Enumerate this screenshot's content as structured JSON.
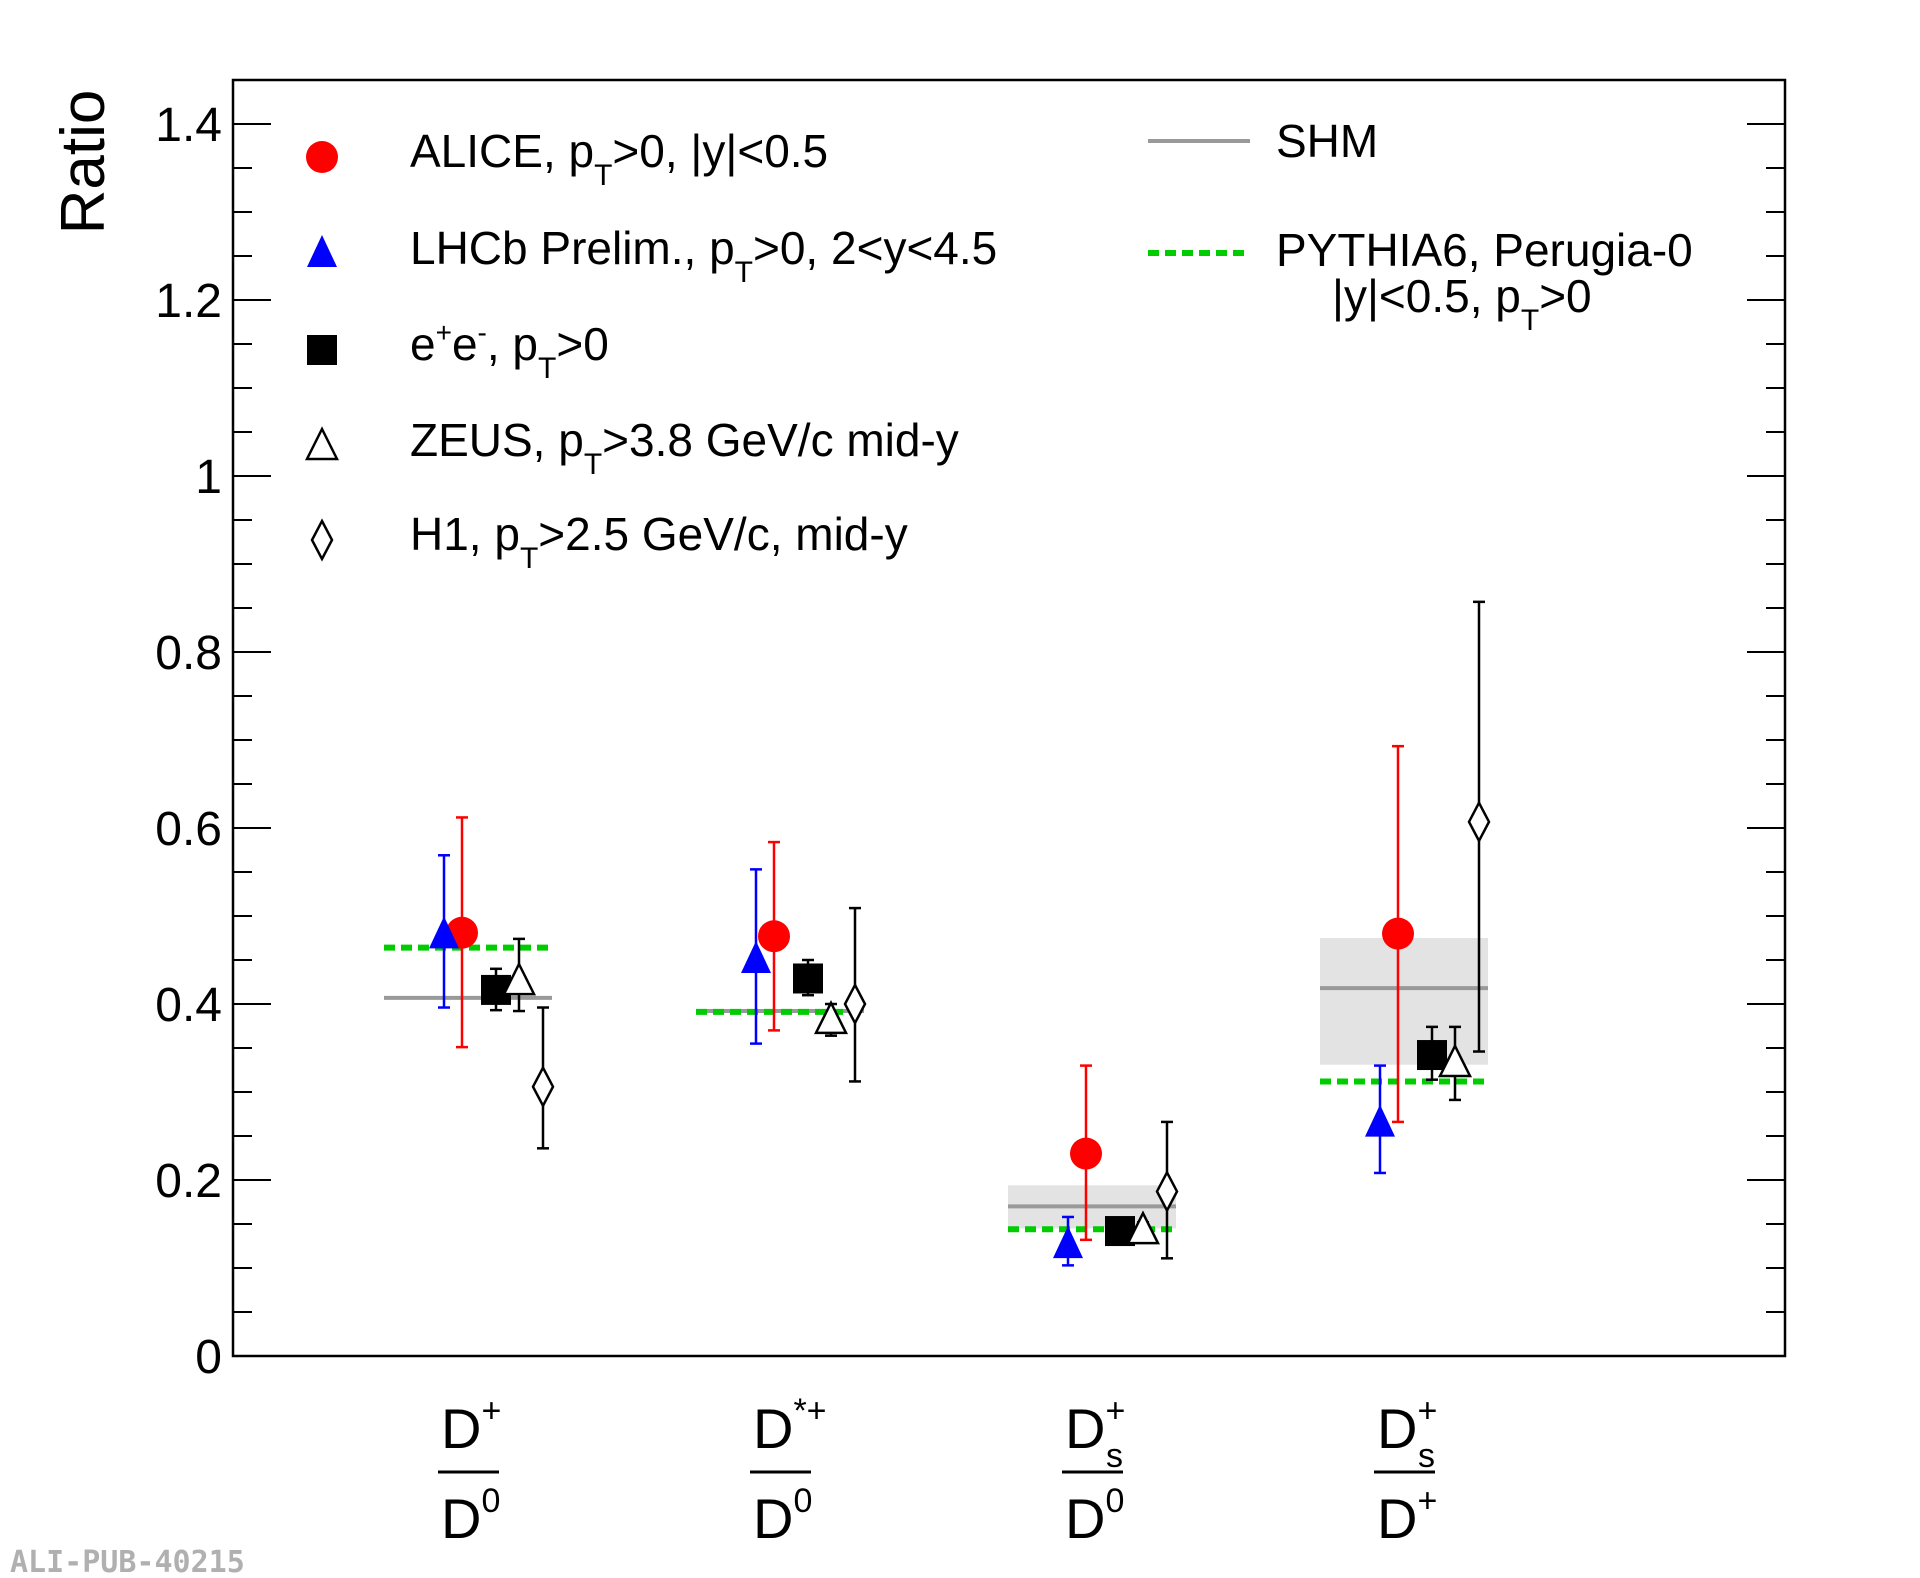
{
  "chart_data": {
    "type": "scatter",
    "ylabel": "Ratio",
    "ylim": [
      0,
      1.45
    ],
    "yticks": [
      "0",
      "0.2",
      "0.4",
      "0.6",
      "0.8",
      "1",
      "1.2",
      "1.4"
    ],
    "ytick_values": [
      0,
      0.2,
      0.4,
      0.6,
      0.8,
      1.0,
      1.2,
      1.4
    ],
    "categories": [
      {
        "num": "D",
        "num_sup": "+",
        "num_sub": "",
        "den": "D",
        "den_sup": "0",
        "den_sub": ""
      },
      {
        "num": "D",
        "num_sup": "*+",
        "num_sub": "",
        "den": "D",
        "den_sup": "0",
        "den_sub": ""
      },
      {
        "num": "D",
        "num_sup": "+",
        "num_sub": "s",
        "den": "D",
        "den_sup": "0",
        "den_sub": ""
      },
      {
        "num": "D",
        "num_sup": "+",
        "num_sub": "s",
        "den": "D",
        "den_sup": "+",
        "den_sub": ""
      }
    ],
    "series": [
      {
        "name": "ALICE",
        "marker": "filled-circle",
        "color": "#ff0000",
        "values": [
          0.481,
          0.477,
          0.23,
          0.48
        ],
        "err_low": [
          0.351,
          0.37,
          0.132,
          0.266
        ],
        "err_high": [
          0.612,
          0.584,
          0.33,
          0.693
        ]
      },
      {
        "name": "LHCb Prelim.",
        "marker": "filled-triangle",
        "color": "#0000ff",
        "values": [
          0.478,
          0.45,
          0.126,
          0.264
        ],
        "err_low": [
          0.396,
          0.355,
          0.103,
          0.208
        ],
        "err_high": [
          0.569,
          0.553,
          0.158,
          0.33
        ]
      },
      {
        "name": "e+e-",
        "marker": "filled-square",
        "color": "#000000",
        "values": [
          0.416,
          0.429,
          0.142,
          0.342
        ],
        "err_low": [
          0.393,
          0.41,
          0.135,
          0.314
        ],
        "err_high": [
          0.44,
          0.45,
          0.15,
          0.374
        ]
      },
      {
        "name": "ZEUS",
        "marker": "open-triangle",
        "color": "#000000",
        "values": [
          0.426,
          0.382,
          0.143,
          0.333
        ],
        "err_low": [
          0.392,
          0.364,
          0.133,
          0.291
        ],
        "err_high": [
          0.474,
          0.4,
          0.152,
          0.374
        ]
      },
      {
        "name": "H1",
        "marker": "open-diamond",
        "color": "#000000",
        "values": [
          0.306,
          0.4,
          0.187,
          0.607
        ],
        "err_low": [
          0.236,
          0.312,
          0.111,
          0.346
        ],
        "err_high": [
          0.396,
          0.509,
          0.266,
          0.857
        ]
      }
    ],
    "models": [
      {
        "name": "SHM",
        "style": "solid",
        "color": "#999999",
        "values": [
          0.407,
          0.392,
          0.17,
          0.418
        ],
        "band_low": [
          null,
          null,
          0.145,
          0.331
        ],
        "band_high": [
          null,
          null,
          0.194,
          0.475
        ]
      },
      {
        "name": "PYTHIA6, Perugia-0",
        "style": "dashed",
        "color": "#00cc00",
        "values": [
          0.464,
          0.391,
          0.144,
          0.312
        ]
      }
    ],
    "legend_left": [
      {
        "marker": "filled-circle",
        "color": "#ff0000",
        "pre": "ALICE, p",
        "sub": "T",
        "post": ">0, |y|<0.5"
      },
      {
        "marker": "filled-triangle",
        "color": "#0000ff",
        "pre": "LHCb Prelim., p",
        "sub": "T",
        "post": ">0, 2<y<4.5"
      },
      {
        "marker": "filled-square",
        "color": "#000000",
        "pre": "e",
        "sup1": "+",
        "mid": "e",
        "sup2": "-",
        "pre2": ", p",
        "sub": "T",
        "post": ">0"
      },
      {
        "marker": "open-triangle",
        "color": "#000000",
        "pre": "ZEUS, p",
        "sub": "T",
        "post": ">3.8 GeV/c mid-y"
      },
      {
        "marker": "open-diamond",
        "color": "#000000",
        "pre": "H1,  p",
        "sub": "T",
        "post": ">2.5 GeV/c, mid-y"
      }
    ],
    "legend_right": {
      "shm": "SHM",
      "pythia_line1": "PYTHIA6, Perugia-0",
      "pythia_line2_pre": "|y|<0.5, p",
      "pythia_line2_sub": "T",
      "pythia_line2_post": ">0"
    },
    "legend_placement": "top"
  },
  "watermark": "ALI-PUB-40215"
}
